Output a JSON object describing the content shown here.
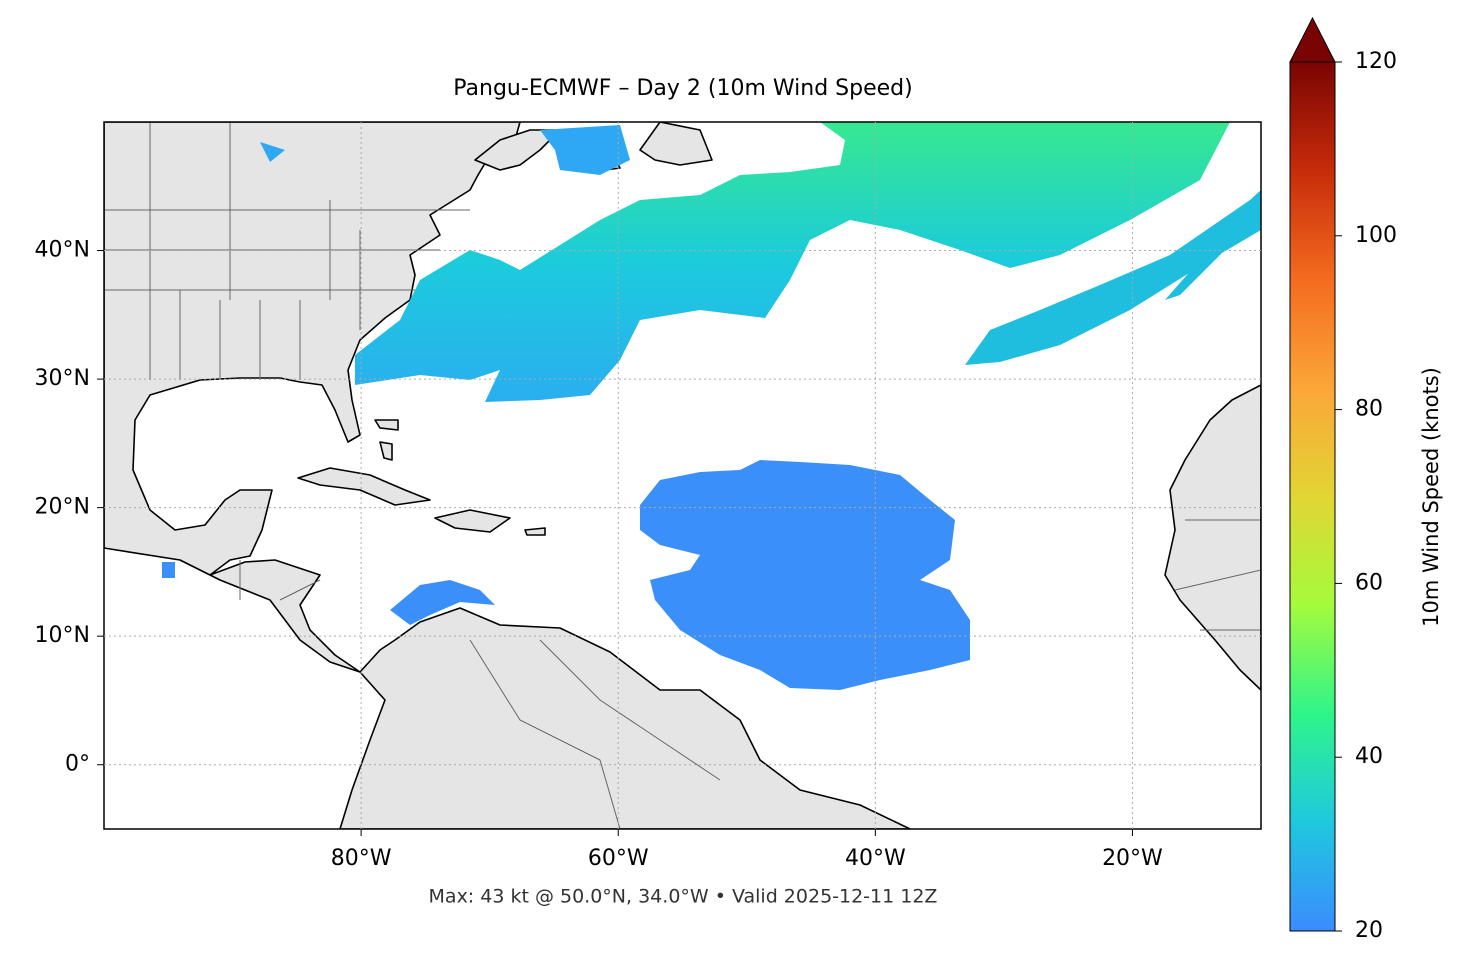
{
  "chart_data": {
    "type": "map",
    "title": "Pangu-ECMWF – Day 2 (10m Wind Speed)",
    "annotation": "Max: 43 kt @ 50.0°N, 34.0°W • Valid 2025-12-11 12Z",
    "xlim": [
      -100,
      -10
    ],
    "ylim": [
      -5,
      50
    ],
    "xticks": [
      {
        "value": -80,
        "label": "80°W"
      },
      {
        "value": -60,
        "label": "60°W"
      },
      {
        "value": -40,
        "label": "40°W"
      },
      {
        "value": -20,
        "label": "20°W"
      }
    ],
    "yticks": [
      {
        "value": 0,
        "label": "0°"
      },
      {
        "value": 10,
        "label": "10°N"
      },
      {
        "value": 20,
        "label": "20°N"
      },
      {
        "value": 30,
        "label": "30°N"
      },
      {
        "value": 40,
        "label": "40°N"
      }
    ],
    "grid": true,
    "colorbar": {
      "label": "10m Wind Speed (knots)",
      "lim": [
        20,
        120
      ],
      "ticks": [
        20,
        40,
        60,
        80,
        100,
        120
      ],
      "extend": "max",
      "colors": [
        "#3b8cff",
        "#1fc8de",
        "#2ef58a",
        "#a4fb3c",
        "#e2d534",
        "#fba638",
        "#f46b1f",
        "#c72c0a",
        "#7a0403"
      ]
    }
  }
}
